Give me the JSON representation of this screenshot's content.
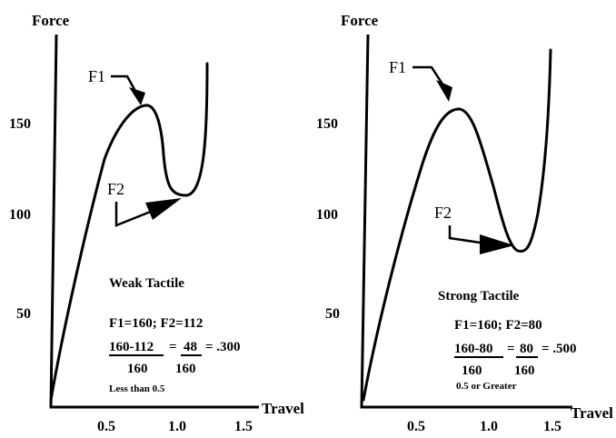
{
  "chart_data": [
    {
      "type": "line",
      "ylabel": "Force",
      "xlabel": "Travel",
      "yticks": [
        "50",
        "100",
        "150"
      ],
      "xticks": [
        "0.5",
        "1.0",
        "1.5"
      ],
      "points": {
        "F1": "F1",
        "F2": "F2"
      },
      "annotations": {
        "title": "Weak Tactile",
        "line1": "F1=160; F2=112",
        "line2_num": "160-112",
        "line2_eq": "=",
        "line2_num2": "48",
        "line2_res": "= .300",
        "line3_den": "160",
        "line3_den2": "160",
        "line4": "Less than 0.5"
      },
      "series": [
        {
          "values": [
            [
              0,
              0
            ],
            [
              0.1,
              60
            ],
            [
              0.25,
              112
            ],
            [
              0.45,
              145
            ],
            [
              0.7,
              160
            ],
            [
              0.8,
              150
            ],
            [
              0.88,
              120
            ],
            [
              0.95,
              112
            ],
            [
              1.05,
              112
            ],
            [
              1.15,
              150
            ],
            [
              1.2,
              200
            ]
          ]
        }
      ]
    },
    {
      "type": "line",
      "ylabel": "Force",
      "xlabel": "Travel",
      "yticks": [
        "50",
        "100",
        "150"
      ],
      "xticks": [
        "0.5",
        "1.0",
        "1.5"
      ],
      "points": {
        "F1": "F1",
        "F2": "F2"
      },
      "annotations": {
        "title": "Strong Tactile",
        "line1": "F1=160; F2=80",
        "line2_num": "160-80",
        "line2_eq": "=",
        "line2_num2": "80",
        "line2_res": "= .500",
        "line3_den": "160",
        "line3_den2": "160",
        "line4": "0.5 or Greater"
      },
      "series": [
        {
          "values": [
            [
              0,
              0
            ],
            [
              0.15,
              60
            ],
            [
              0.35,
              112
            ],
            [
              0.55,
              145
            ],
            [
              0.8,
              160
            ],
            [
              0.95,
              140
            ],
            [
              1.1,
              100
            ],
            [
              1.2,
              80
            ],
            [
              1.3,
              85
            ],
            [
              1.4,
              120
            ],
            [
              1.5,
              200
            ]
          ]
        }
      ]
    }
  ]
}
